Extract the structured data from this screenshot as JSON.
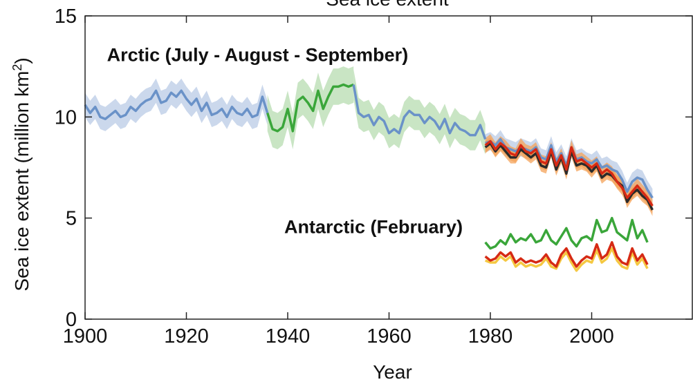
{
  "chart_data": {
    "type": "line",
    "title": "Sea ice extent",
    "xlabel": "Year",
    "ylabel": "Sea ice extent (million km",
    "ylabel_sup": "2",
    "ylabel_close": ")",
    "xlim": [
      1900,
      2020
    ],
    "ylim": [
      0,
      15
    ],
    "xticks": [
      1900,
      1920,
      1940,
      1960,
      1980,
      2000
    ],
    "yticks": [
      0,
      5,
      10,
      15
    ],
    "annotations": [
      {
        "text": "Arctic (July - August - September)",
        "x": 1905,
        "y": 13.1
      },
      {
        "text": "Antarctic (February)",
        "x": 1940,
        "y": 4.6
      }
    ],
    "colors": {
      "arctic_blue": "#6a92c8",
      "arctic_blue_band": "#b9cbe6",
      "arctic_green": "#3aa63a",
      "arctic_green_band": "#b7dcb0",
      "satellite_red": "#d62a14",
      "satellite_black": "#2b2b2b",
      "satellite_orange_band": "#f4a35a",
      "antarctic_green": "#3aa63a",
      "antarctic_yellow": "#f5c842"
    },
    "series": [
      {
        "region": "Arctic",
        "color_key": "arctic_blue",
        "band_key": "arctic_blue_band",
        "band_width": 0.6,
        "x": [
          1900,
          1901,
          1902,
          1903,
          1904,
          1905,
          1906,
          1907,
          1908,
          1909,
          1910,
          1911,
          1912,
          1913,
          1914,
          1915,
          1916,
          1917,
          1918,
          1919,
          1920,
          1921,
          1922,
          1923,
          1924,
          1925,
          1926,
          1927,
          1928,
          1929,
          1930,
          1931,
          1932,
          1933,
          1934,
          1935,
          1936
        ],
        "y": [
          10.6,
          10.2,
          10.5,
          10.0,
          9.9,
          10.1,
          10.3,
          10.0,
          10.1,
          10.5,
          10.3,
          10.6,
          10.8,
          10.9,
          11.3,
          10.7,
          10.8,
          11.2,
          11.0,
          11.3,
          10.9,
          10.6,
          10.9,
          10.3,
          10.7,
          10.1,
          10.2,
          10.4,
          10.0,
          10.5,
          10.2,
          10.1,
          10.4,
          10.0,
          10.1,
          11.0,
          10.2
        ]
      },
      {
        "region": "Arctic",
        "color_key": "arctic_green",
        "band_key": "arctic_green_band",
        "band_width": 0.9,
        "x": [
          1936,
          1937,
          1938,
          1939,
          1940,
          1941,
          1942,
          1943,
          1944,
          1945,
          1946,
          1947,
          1948,
          1949,
          1950,
          1951,
          1952,
          1953
        ],
        "y": [
          10.2,
          9.4,
          9.3,
          9.5,
          10.4,
          9.3,
          10.8,
          11.0,
          10.7,
          10.3,
          11.3,
          10.4,
          11.0,
          11.5,
          11.5,
          11.6,
          11.5,
          11.6
        ]
      },
      {
        "region": "Arctic",
        "color_key": "arctic_blue",
        "band_key": "arctic_green_band",
        "band_width": 0.75,
        "x": [
          1953,
          1954,
          1955,
          1956,
          1957,
          1958,
          1959,
          1960,
          1961,
          1962,
          1963,
          1964,
          1965,
          1966,
          1967,
          1968,
          1969,
          1970,
          1971,
          1972,
          1973,
          1974,
          1975,
          1976,
          1977,
          1978,
          1979
        ],
        "y": [
          11.6,
          10.2,
          10.0,
          10.1,
          9.6,
          10.0,
          9.8,
          9.2,
          9.4,
          9.2,
          10.0,
          10.3,
          10.1,
          10.1,
          9.7,
          10.0,
          9.8,
          9.4,
          9.9,
          9.2,
          9.7,
          9.4,
          9.3,
          9.1,
          9.1,
          9.6,
          8.9
        ]
      },
      {
        "region": "Arctic",
        "color_key": "arctic_blue",
        "band_key": "arctic_blue_band",
        "band_width": 0.45,
        "x": [
          1979,
          1980,
          1981,
          1982,
          1983,
          1984,
          1985,
          1986,
          1987,
          1988,
          1989,
          1990,
          1991,
          1992,
          1993,
          1994,
          1995,
          1996,
          1997,
          1998,
          1999,
          2000,
          2001,
          2002,
          2003,
          2004,
          2005,
          2006,
          2007,
          2008,
          2009,
          2010,
          2011,
          2012
        ],
        "y": [
          8.7,
          8.8,
          8.6,
          8.9,
          8.5,
          8.4,
          8.3,
          8.5,
          8.4,
          8.3,
          8.5,
          8.0,
          7.9,
          8.6,
          7.8,
          8.2,
          7.6,
          8.5,
          7.9,
          8.0,
          7.8,
          7.7,
          7.9,
          7.5,
          7.6,
          7.4,
          7.3,
          6.9,
          6.3,
          6.8,
          7.0,
          6.9,
          6.4,
          6.0
        ]
      },
      {
        "region": "Arctic",
        "color_key": "satellite_black",
        "band_key": "satellite_orange_band",
        "band_width": 0.3,
        "x": [
          1979,
          1980,
          1981,
          1982,
          1983,
          1984,
          1985,
          1986,
          1987,
          1988,
          1989,
          1990,
          1991,
          1992,
          1993,
          1994,
          1995,
          1996,
          1997,
          1998,
          1999,
          2000,
          2001,
          2002,
          2003,
          2004,
          2005,
          2006,
          2007,
          2008,
          2009,
          2010,
          2011,
          2012
        ],
        "y": [
          8.5,
          8.7,
          8.3,
          8.6,
          8.3,
          8.0,
          8.0,
          8.4,
          8.2,
          8.0,
          8.2,
          7.6,
          7.5,
          8.3,
          7.4,
          8.0,
          7.2,
          8.3,
          7.6,
          7.7,
          7.6,
          7.3,
          7.6,
          7.0,
          7.2,
          7.1,
          6.8,
          6.6,
          5.8,
          6.2,
          6.4,
          6.1,
          5.9,
          5.4
        ]
      },
      {
        "region": "Arctic",
        "color_key": "satellite_red",
        "band_key": "satellite_orange_band",
        "band_width": 0.35,
        "x": [
          1979,
          1980,
          1981,
          1982,
          1983,
          1984,
          1985,
          1986,
          1987,
          1988,
          1989,
          1990,
          1991,
          1992,
          1993,
          1994,
          1995,
          1996,
          1997,
          1998,
          1999,
          2000,
          2001,
          2002,
          2003,
          2004,
          2005,
          2006,
          2007,
          2008,
          2009,
          2010,
          2011,
          2012
        ],
        "y": [
          8.6,
          8.8,
          8.4,
          8.7,
          8.5,
          8.2,
          8.1,
          8.6,
          8.3,
          8.2,
          8.4,
          7.8,
          7.7,
          8.4,
          7.6,
          8.1,
          7.4,
          8.5,
          7.8,
          7.9,
          7.7,
          7.5,
          7.7,
          7.2,
          7.4,
          7.2,
          6.8,
          6.5,
          6.0,
          6.3,
          6.6,
          6.3,
          6.0,
          5.6
        ]
      },
      {
        "region": "Antarctic",
        "color_key": "antarctic_green",
        "band_key": "",
        "band_width": 0,
        "x": [
          1979,
          1980,
          1981,
          1982,
          1983,
          1984,
          1985,
          1986,
          1987,
          1988,
          1989,
          1990,
          1991,
          1992,
          1993,
          1994,
          1995,
          1996,
          1997,
          1998,
          1999,
          2000,
          2001,
          2002,
          2003,
          2004,
          2005,
          2006,
          2007,
          2008,
          2009,
          2010,
          2011
        ],
        "y": [
          3.8,
          3.5,
          3.6,
          3.9,
          3.7,
          4.2,
          3.8,
          4.0,
          3.9,
          4.2,
          3.8,
          3.9,
          4.4,
          3.9,
          3.7,
          4.1,
          4.5,
          3.9,
          3.6,
          4.0,
          4.1,
          3.9,
          4.9,
          4.3,
          4.4,
          5.0,
          4.3,
          4.1,
          3.9,
          4.9,
          4.0,
          4.4,
          3.8
        ]
      },
      {
        "region": "Antarctic",
        "color_key": "antarctic_yellow",
        "band_key": "",
        "band_width": 0,
        "x": [
          1979,
          1980,
          1981,
          1982,
          1983,
          1984,
          1985,
          1986,
          1987,
          1988,
          1989,
          1990,
          1991,
          1992,
          1993,
          1994,
          1995,
          1996,
          1997,
          1998,
          1999,
          2000,
          2001,
          2002,
          2003,
          2004,
          2005,
          2006,
          2007,
          2008,
          2009,
          2010,
          2011
        ],
        "y": [
          2.9,
          2.8,
          2.8,
          3.1,
          2.9,
          3.1,
          2.6,
          2.8,
          2.6,
          2.7,
          2.6,
          2.7,
          3.0,
          2.6,
          2.5,
          3.0,
          3.3,
          2.8,
          2.4,
          2.7,
          2.9,
          2.8,
          3.4,
          2.8,
          3.0,
          3.5,
          2.9,
          2.6,
          2.5,
          3.3,
          2.7,
          3.0,
          2.5
        ]
      },
      {
        "region": "Antarctic",
        "color_key": "satellite_red",
        "band_key": "",
        "band_width": 0,
        "x": [
          1979,
          1980,
          1981,
          1982,
          1983,
          1984,
          1985,
          1986,
          1987,
          1988,
          1989,
          1990,
          1991,
          1992,
          1993,
          1994,
          1995,
          1996,
          1997,
          1998,
          1999,
          2000,
          2001,
          2002,
          2003,
          2004,
          2005,
          2006,
          2007,
          2008,
          2009,
          2010,
          2011
        ],
        "y": [
          3.1,
          2.9,
          3.0,
          3.3,
          3.1,
          3.3,
          2.8,
          3.0,
          2.8,
          2.9,
          2.8,
          2.9,
          3.2,
          2.8,
          2.6,
          3.2,
          3.5,
          3.0,
          2.6,
          2.9,
          3.1,
          3.0,
          3.7,
          3.0,
          3.2,
          3.8,
          3.1,
          2.8,
          2.7,
          3.5,
          2.9,
          3.2,
          2.7
        ]
      }
    ]
  }
}
